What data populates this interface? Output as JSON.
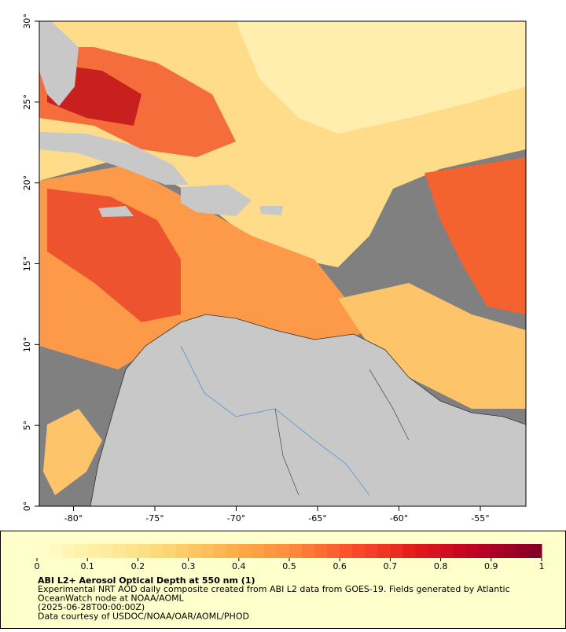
{
  "map": {
    "xlim": [
      -82.1,
      -52.2
    ],
    "ylim": [
      0,
      30
    ],
    "xticks": [
      {
        "value": -80,
        "label": "-80°"
      },
      {
        "value": -75,
        "label": "-75°"
      },
      {
        "value": -70,
        "label": "-70°"
      },
      {
        "value": -65,
        "label": "-65°"
      },
      {
        "value": -60,
        "label": "-60°"
      },
      {
        "value": -55,
        "label": "-55°"
      }
    ],
    "yticks": [
      {
        "value": 0,
        "label": "0°"
      },
      {
        "value": 5,
        "label": "5°"
      },
      {
        "value": 10,
        "label": "10°"
      },
      {
        "value": 15,
        "label": "15°"
      },
      {
        "value": 20,
        "label": "20°"
      },
      {
        "value": 25,
        "label": "25°"
      },
      {
        "value": 30,
        "label": "30°"
      }
    ]
  },
  "colorbar": {
    "lim": [
      0,
      1
    ],
    "ticks": [
      0,
      0.1,
      0.2,
      0.3,
      0.4,
      0.5,
      0.6,
      0.7,
      0.8,
      0.9,
      1
    ],
    "colors": [
      "#ffffcc",
      "#ffeda0",
      "#fed976",
      "#feb24c",
      "#fd8d3c",
      "#fc4e2a",
      "#e31a1c",
      "#bd0026",
      "#800026"
    ]
  },
  "legend": {
    "title": "ABI L2+ Aerosol Optical Depth at 550 nm (1)",
    "lines": [
      "Experimental NRT AOD daily composite created from ABI L2 data from GOES-19. Fields generated by Atlantic",
      "OceanWatch node at NOAA/AOML",
      "(2025-06-28T00:00:00Z)",
      "Data courtesy of USDOC/NOAA/OAR/AOML/PHOD"
    ]
  }
}
